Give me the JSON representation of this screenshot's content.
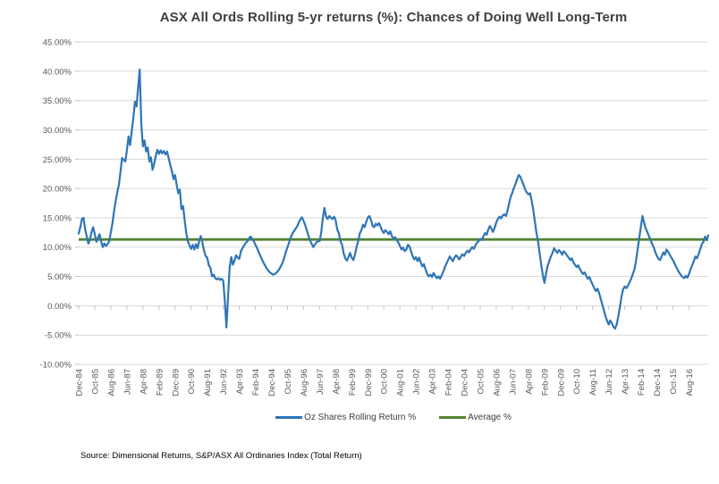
{
  "chart_data": {
    "type": "line",
    "title": "ASX All Ords Rolling 5-yr returns (%): Chances of Doing Well Long-Term",
    "x_tick_step_months": 10,
    "x_tick_labels": [
      "Dec-84",
      "Oct-85",
      "Aug-86",
      "Jun-87",
      "Apr-88",
      "Feb-89",
      "Dec-89",
      "Oct-90",
      "Aug-91",
      "Jun-92",
      "Apr-93",
      "Feb-94",
      "Dec-94",
      "Oct-95",
      "Aug-96",
      "Jun-97",
      "Apr-98",
      "Feb-99",
      "Dec-99",
      "Oct-00",
      "Aug-01",
      "Jun-02",
      "Apr-03",
      "Feb-04",
      "Dec-04",
      "Oct-05",
      "Aug-06",
      "Jun-07",
      "Apr-08",
      "Feb-09",
      "Dec-09",
      "Oct-10",
      "Aug-11",
      "Jun-12",
      "Apr-13",
      "Feb-14",
      "Dec-14",
      "Oct-15",
      "Aug-16"
    ],
    "y_tick_labels": [
      "45.00%",
      "40.00%",
      "35.00%",
      "30.00%",
      "25.00%",
      "20.00%",
      "15.00%",
      "10.00%",
      "5.00%",
      "0.00%",
      "-5.00%",
      "-10.00%"
    ],
    "ylim": [
      -10,
      45
    ],
    "grid": "horizontal",
    "legend_position": "bottom",
    "series": [
      {
        "name": "Oz Shares Rolling Return %",
        "color": "#2E75B6",
        "type": "monthly_values",
        "values": [
          12.3,
          13.4,
          14.8,
          15.0,
          13.0,
          11.8,
          10.6,
          11.3,
          12.6,
          13.4,
          12.2,
          10.9,
          11.6,
          12.2,
          11.0,
          10.0,
          10.6,
          10.2,
          10.5,
          11.0,
          12.5,
          14.0,
          16.1,
          17.8,
          19.3,
          20.6,
          22.8,
          25.2,
          24.9,
          24.6,
          26.5,
          28.9,
          27.4,
          29.8,
          32.0,
          34.8,
          34.0,
          37.2,
          40.3,
          31.0,
          27.2,
          28.2,
          26.3,
          27.0,
          24.6,
          25.3,
          23.2,
          24.2,
          25.6,
          26.6,
          25.9,
          26.5,
          26.0,
          26.4,
          25.8,
          26.3,
          25.2,
          24.0,
          23.0,
          21.6,
          22.3,
          20.6,
          19.2,
          19.8,
          16.5,
          17.0,
          14.6,
          12.4,
          11.0,
          10.3,
          9.7,
          10.4,
          9.6,
          10.5,
          9.8,
          11.0,
          11.9,
          10.8,
          9.4,
          8.5,
          8.2,
          6.9,
          6.5,
          5.0,
          5.3,
          4.7,
          4.5,
          4.7,
          4.4,
          4.6,
          4.3,
          0.8,
          -3.7,
          1.5,
          6.5,
          8.3,
          7.0,
          7.7,
          8.6,
          8.2,
          8.0,
          9.3,
          9.8,
          10.3,
          10.7,
          11.0,
          11.5,
          11.8,
          11.4,
          11.0,
          10.4,
          9.9,
          9.2,
          8.6,
          8.0,
          7.4,
          6.9,
          6.4,
          6.0,
          5.7,
          5.5,
          5.3,
          5.4,
          5.6,
          5.9,
          6.3,
          6.8,
          7.4,
          8.2,
          9.2,
          10.0,
          10.8,
          11.6,
          12.3,
          12.7,
          13.1,
          13.5,
          14.2,
          14.7,
          15.1,
          14.5,
          13.8,
          12.9,
          12.0,
          11.2,
          10.6,
          10.0,
          10.4,
          10.8,
          11.0,
          11.0,
          12.5,
          15.0,
          16.7,
          15.2,
          14.8,
          15.3,
          15.0,
          14.8,
          15.2,
          14.6,
          13.0,
          12.4,
          11.0,
          10.4,
          8.9,
          8.1,
          7.7,
          8.3,
          9.0,
          8.2,
          7.8,
          8.7,
          10.0,
          11.0,
          12.3,
          12.9,
          13.8,
          13.4,
          14.3,
          15.0,
          15.3,
          14.6,
          13.6,
          13.4,
          14.0,
          13.7,
          14.1,
          13.5,
          12.8,
          12.4,
          12.9,
          12.6,
          12.2,
          12.7,
          11.9,
          11.4,
          11.7,
          11.2,
          10.8,
          10.2,
          9.6,
          9.9,
          9.3,
          9.6,
          10.4,
          10.1,
          9.2,
          8.4,
          7.9,
          8.3,
          7.6,
          8.2,
          7.4,
          6.7,
          7.1,
          6.2,
          5.4,
          5.0,
          5.3,
          4.9,
          5.6,
          5.1,
          4.7,
          5.0,
          4.6,
          5.2,
          5.8,
          6.6,
          7.2,
          7.8,
          8.4,
          8.0,
          7.6,
          8.2,
          8.6,
          8.3,
          7.9,
          8.4,
          8.8,
          8.5,
          9.0,
          9.4,
          9.1,
          9.6,
          10.0,
          9.7,
          10.3,
          10.8,
          11.0,
          11.4,
          11.2,
          11.9,
          12.4,
          12.1,
          13.0,
          13.6,
          13.1,
          12.6,
          13.3,
          14.2,
          14.8,
          15.2,
          14.9,
          15.4,
          15.6,
          15.3,
          16.2,
          17.5,
          18.6,
          19.3,
          20.1,
          20.8,
          21.6,
          22.3,
          22.0,
          21.3,
          20.6,
          19.8,
          19.3,
          19.0,
          19.2,
          18.0,
          16.5,
          14.5,
          12.5,
          11.0,
          9.0,
          7.0,
          5.2,
          3.9,
          5.5,
          6.8,
          7.6,
          8.4,
          9.0,
          9.8,
          9.4,
          9.0,
          9.5,
          9.2,
          8.7,
          9.3,
          9.0,
          8.6,
          8.2,
          7.8,
          8.1,
          7.4,
          7.0,
          6.6,
          6.9,
          6.3,
          5.8,
          5.4,
          5.7,
          5.1,
          4.6,
          4.9,
          4.2,
          3.6,
          3.0,
          2.5,
          2.9,
          2.2,
          1.2,
          0.2,
          -0.8,
          -1.8,
          -2.6,
          -3.2,
          -2.5,
          -3.0,
          -3.6,
          -3.9,
          -3.2,
          -1.8,
          -0.2,
          1.6,
          2.8,
          3.3,
          3.0,
          3.4,
          4.0,
          4.6,
          5.4,
          6.2,
          7.6,
          9.6,
          11.5,
          13.4,
          15.3,
          14.2,
          13.2,
          12.6,
          11.9,
          11.3,
          10.6,
          10.0,
          9.2,
          8.5,
          8.0,
          7.8,
          8.4,
          9.1,
          8.7,
          9.6,
          9.2,
          8.7,
          8.2,
          7.8,
          7.2,
          6.6,
          6.1,
          5.6,
          5.2,
          4.9,
          4.7,
          5.1,
          4.8,
          5.4,
          6.2,
          6.9,
          7.6,
          8.4,
          8.1,
          8.8,
          9.6,
          10.5,
          10.9,
          11.8,
          11.2,
          12.0
        ]
      },
      {
        "name": "Average %",
        "color": "#548235",
        "type": "constant",
        "value": 11.3
      }
    ]
  },
  "source_note": "Source: Dimensional Returns,  S&P/ASX All Ordinaries Index (Total Return)",
  "colors": {
    "background": "#FFFFFF",
    "grid": "#D9D9D9",
    "tick": "#BFBFBF",
    "axis_text": "#595959",
    "title_text": "#3F3F3F"
  }
}
